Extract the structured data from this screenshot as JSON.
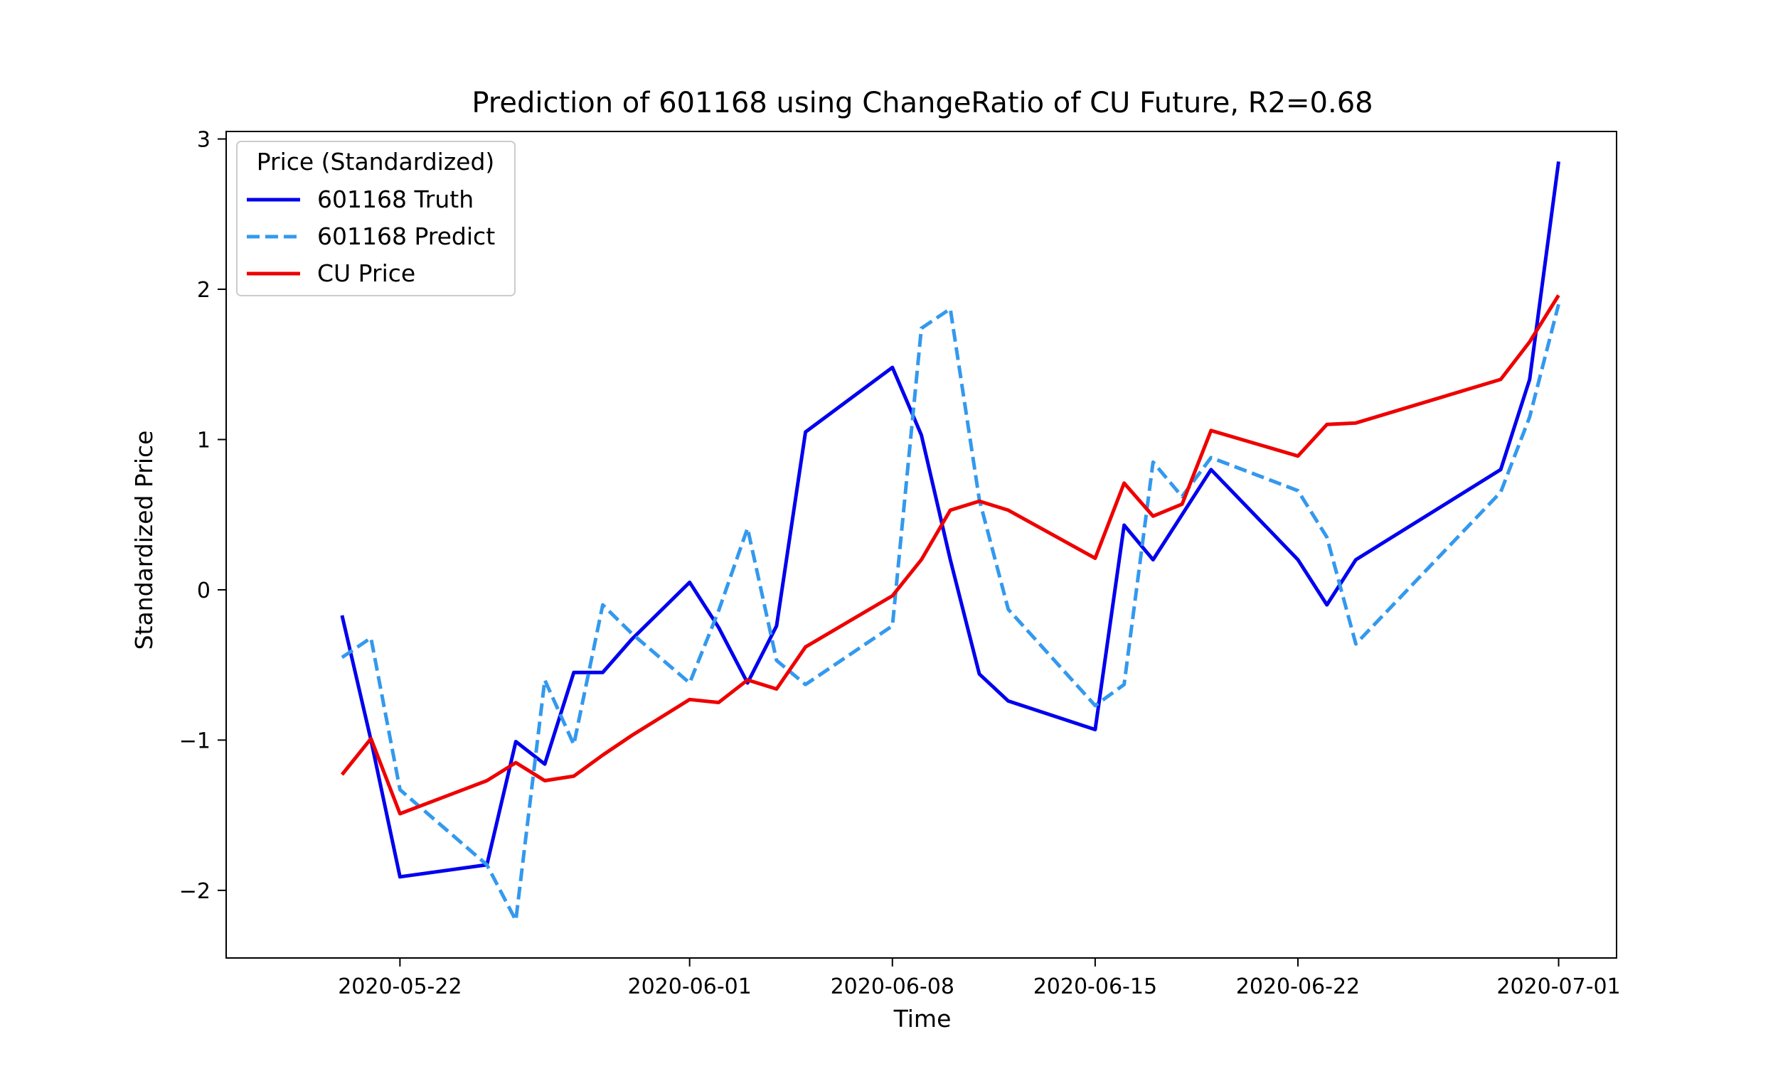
{
  "chart_data": {
    "type": "line",
    "title": "Prediction of 601168 using ChangeRatio of CU Future, R2=0.68",
    "xlabel": "Time",
    "ylabel": "Standardized Price",
    "xlim": [
      "2020-05-16",
      "2020-07-03"
    ],
    "ylim": [
      -2.45,
      3.05
    ],
    "x_ticks": [
      "2020-05-22",
      "2020-06-01",
      "2020-06-08",
      "2020-06-15",
      "2020-06-22",
      "2020-07-01"
    ],
    "y_ticks": [
      -2,
      -1,
      0,
      1,
      2,
      3
    ],
    "y_tick_labels": [
      "−2",
      "−1",
      "0",
      "1",
      "2",
      "3"
    ],
    "grid": false,
    "legend": {
      "title": "Price (Standardized)",
      "placement": "top-left"
    },
    "x": [
      "2020-05-20",
      "2020-05-21",
      "2020-05-22",
      "2020-05-25",
      "2020-05-26",
      "2020-05-27",
      "2020-05-28",
      "2020-05-29",
      "2020-05-30",
      "2020-06-01",
      "2020-06-02",
      "2020-06-03",
      "2020-06-04",
      "2020-06-05",
      "2020-06-08",
      "2020-06-09",
      "2020-06-10",
      "2020-06-11",
      "2020-06-12",
      "2020-06-15",
      "2020-06-16",
      "2020-06-17",
      "2020-06-18",
      "2020-06-19",
      "2020-06-22",
      "2020-06-23",
      "2020-06-24",
      "2020-06-29",
      "2020-06-30",
      "2020-07-01"
    ],
    "series": [
      {
        "name": "601168 Truth",
        "color": "#0000ee",
        "style": "solid",
        "values": [
          -0.17,
          -1.0,
          -1.91,
          -1.83,
          -1.01,
          -1.16,
          -0.55,
          -0.55,
          -0.33,
          0.05,
          -0.25,
          -0.62,
          -0.24,
          1.05,
          1.48,
          1.03,
          0.2,
          -0.56,
          -0.74,
          -0.93,
          0.43,
          0.2,
          0.5,
          0.8,
          0.2,
          -0.1,
          0.2,
          0.8,
          1.4,
          2.85
        ]
      },
      {
        "name": "601168 Predict",
        "color": "#3399ee",
        "style": "dashed",
        "values": [
          -0.45,
          -0.32,
          -1.33,
          -1.83,
          -2.2,
          -0.6,
          -1.03,
          -0.1,
          -0.29,
          -0.62,
          -0.14,
          0.41,
          -0.47,
          -0.63,
          -0.24,
          1.74,
          1.87,
          0.6,
          -0.13,
          -0.77,
          -0.63,
          0.85,
          0.62,
          0.88,
          0.66,
          0.35,
          -0.36,
          0.65,
          1.15,
          1.9
        ]
      },
      {
        "name": "CU Price",
        "color": "#ee0000",
        "style": "solid",
        "values": [
          -1.23,
          -0.99,
          -1.49,
          -1.27,
          -1.15,
          -1.27,
          -1.24,
          -1.1,
          -0.97,
          -0.73,
          -0.75,
          -0.6,
          -0.66,
          -0.38,
          -0.04,
          0.2,
          0.53,
          0.59,
          0.53,
          0.21,
          0.71,
          0.49,
          0.57,
          1.06,
          0.89,
          1.1,
          1.11,
          1.4,
          1.65,
          1.96
        ]
      }
    ]
  }
}
